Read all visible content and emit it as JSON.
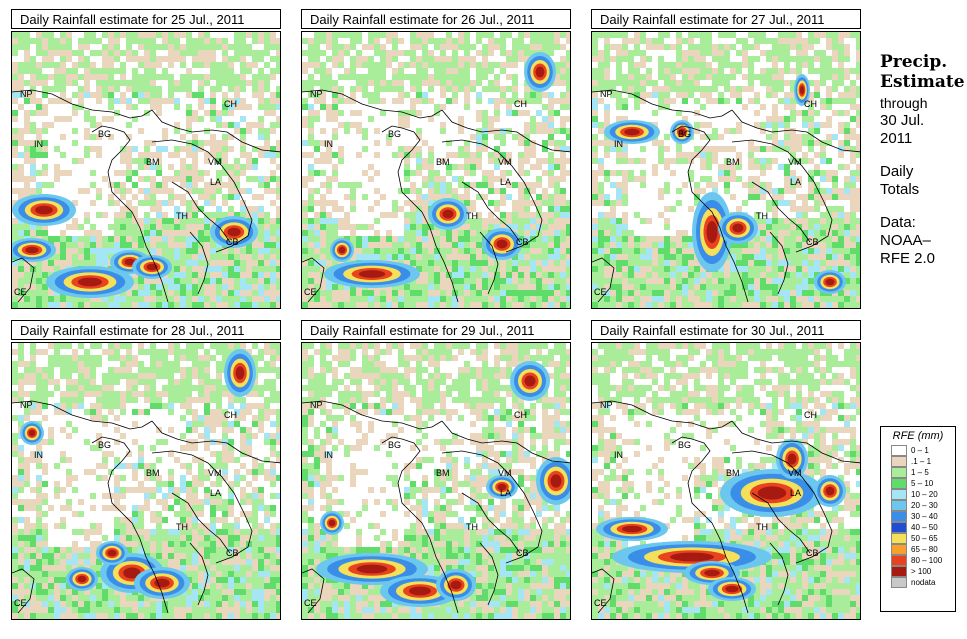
{
  "panels": [
    {
      "title": "Daily Rainfall estimate for  25 Jul., 2011",
      "seed": 11
    },
    {
      "title": "Daily Rainfall estimate for  26 Jul., 2011",
      "seed": 23
    },
    {
      "title": "Daily Rainfall estimate for  27 Jul., 2011",
      "seed": 37
    },
    {
      "title": "Daily Rainfall estimate for  28 Jul., 2011",
      "seed": 41
    },
    {
      "title": "Daily Rainfall estimate for  29 Jul., 2011",
      "seed": 53
    },
    {
      "title": "Daily Rainfall estimate for  30 Jul., 2011",
      "seed": 67
    }
  ],
  "country_labels": [
    {
      "code": "NP"
    },
    {
      "code": "CH"
    },
    {
      "code": "BG"
    },
    {
      "code": "IN"
    },
    {
      "code": "BM"
    },
    {
      "code": "VM"
    },
    {
      "code": "LA"
    },
    {
      "code": "TH"
    },
    {
      "code": "CB"
    },
    {
      "code": "CE"
    }
  ],
  "side": {
    "title_line1": "Precip.",
    "title_line2": "Estimate",
    "through": "through",
    "date_line1": "30 Jul.",
    "date_line2": "2011",
    "daily1": "Daily",
    "daily2": "Totals",
    "data1": "Data:",
    "data2": "NOAA–",
    "data3": "RFE 2.0"
  },
  "legend": {
    "title": "RFE (mm)",
    "items": [
      {
        "label": "0 – 1",
        "color": "#ffffff"
      },
      {
        "label": ".1 – 1",
        "color": "#ead5bd"
      },
      {
        "label": "1 – 5",
        "color": "#a9ec9a"
      },
      {
        "label": "5 – 10",
        "color": "#5fdc6a"
      },
      {
        "label": "10 – 20",
        "color": "#a4e6f4"
      },
      {
        "label": "20 – 30",
        "color": "#6cc7ef"
      },
      {
        "label": "30 – 40",
        "color": "#3b8ee8"
      },
      {
        "label": "40 – 50",
        "color": "#1f4fd0"
      },
      {
        "label": "50 – 65",
        "color": "#f5e05a"
      },
      {
        "label": "65 – 80",
        "color": "#f7a02e"
      },
      {
        "label": "80 – 100",
        "color": "#e8421f"
      },
      {
        "label": "> 100",
        "color": "#a61a12"
      },
      {
        "label": "nodata",
        "color": "#c8c8c8"
      }
    ]
  }
}
